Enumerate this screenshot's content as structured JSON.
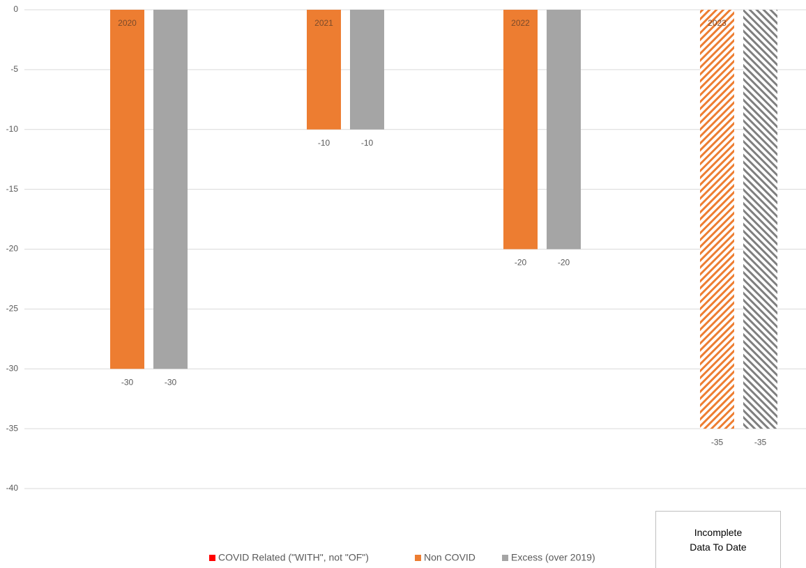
{
  "chart_data": {
    "type": "bar",
    "categories": [
      "2020",
      "2021",
      "2022",
      "2023"
    ],
    "series": [
      {
        "name": "COVID Related (\"WITH\", not \"OF\")",
        "color": "#ff0000",
        "values": [
          0,
          0,
          0,
          0
        ]
      },
      {
        "name": "Non COVID",
        "color": "#ed7d31",
        "values": [
          -30,
          -10,
          -20,
          -35
        ]
      },
      {
        "name": "Excess (over 2019)",
        "color": "#a5a5a5",
        "values": [
          -30,
          -10,
          -20,
          -35
        ]
      }
    ],
    "hatched": [
      false,
      false,
      false,
      true
    ],
    "ylim": [
      -40,
      0
    ],
    "yticks": [
      0,
      -5,
      -10,
      -15,
      -20,
      -25,
      -30,
      -35,
      -40
    ],
    "grid": true,
    "annotation": "Incomplete Data To Date"
  }
}
